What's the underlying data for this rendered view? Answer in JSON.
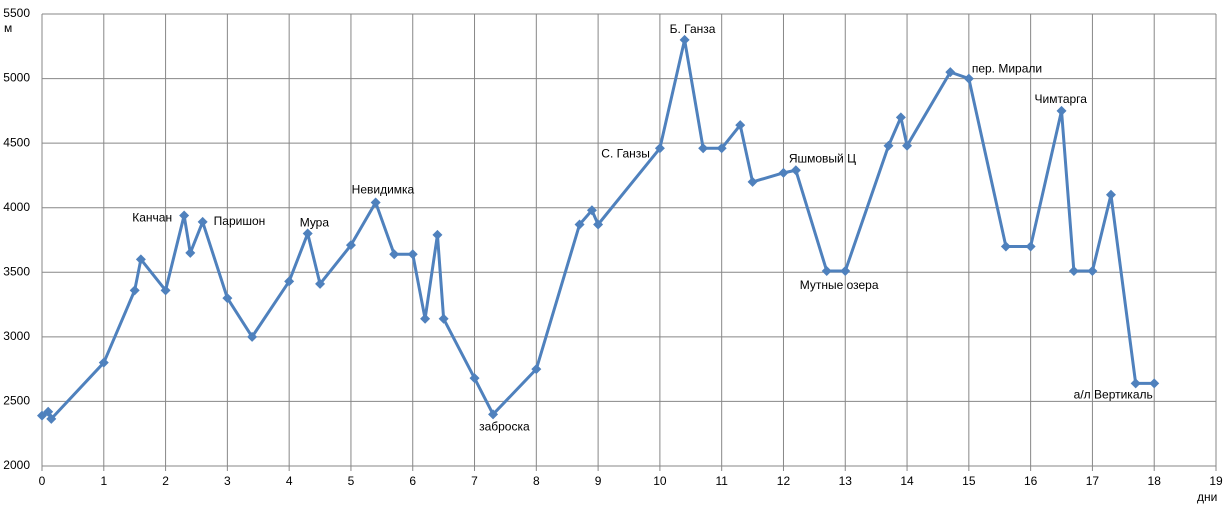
{
  "chart_data": {
    "type": "line",
    "y_label": "м",
    "x_label": "дни",
    "x": [
      0,
      0.1,
      0.15,
      1,
      1.5,
      1.6,
      2,
      2.3,
      2.4,
      2.6,
      3,
      3.4,
      4,
      4.3,
      4.5,
      5,
      5.4,
      5.7,
      6,
      6.2,
      6.4,
      6.5,
      7,
      7.3,
      8,
      8.7,
      8.9,
      9,
      10,
      10.4,
      10.7,
      11,
      11.3,
      11.5,
      12,
      12.2,
      12.7,
      13,
      13.7,
      13.9,
      14,
      14.7,
      15,
      15.6,
      16,
      16.5,
      16.7,
      17,
      17.3,
      17.7,
      18
    ],
    "series": [
      {
        "color": "#4f81bd",
        "values": [
          2390,
          2420,
          2365,
          2800,
          3360,
          3600,
          3360,
          3940,
          3650,
          3890,
          3300,
          3000,
          3430,
          3800,
          3410,
          3710,
          4040,
          3640,
          3640,
          3140,
          3790,
          3140,
          2680,
          2400,
          2750,
          3870,
          3980,
          3870,
          4460,
          5300,
          4460,
          4460,
          4640,
          4200,
          4270,
          4290,
          3510,
          3510,
          4480,
          4700,
          4480,
          5050,
          5000,
          3700,
          3700,
          4750,
          3510,
          3510,
          4100,
          2640,
          2640
        ]
      }
    ],
    "annotations": [
      "Канчан",
      "Паришон",
      "Мура",
      "Невидимка",
      "заброска",
      "С. Ганзы",
      "Б. Ганза",
      "Яшмовый Ц",
      "Мутные озера",
      "пер. Мирали",
      "Чимтарга",
      "а/л Вертикаль"
    ],
    "xlim": [
      0,
      19
    ],
    "xticks": [
      0,
      1,
      2,
      3,
      4,
      5,
      6,
      7,
      8,
      9,
      10,
      11,
      12,
      13,
      14,
      15,
      16,
      17,
      18,
      19
    ],
    "ylim": [
      2000,
      5500
    ],
    "yticks": [
      2000,
      2500,
      3000,
      3500,
      4000,
      4500,
      5000,
      5500
    ],
    "grid": true
  }
}
